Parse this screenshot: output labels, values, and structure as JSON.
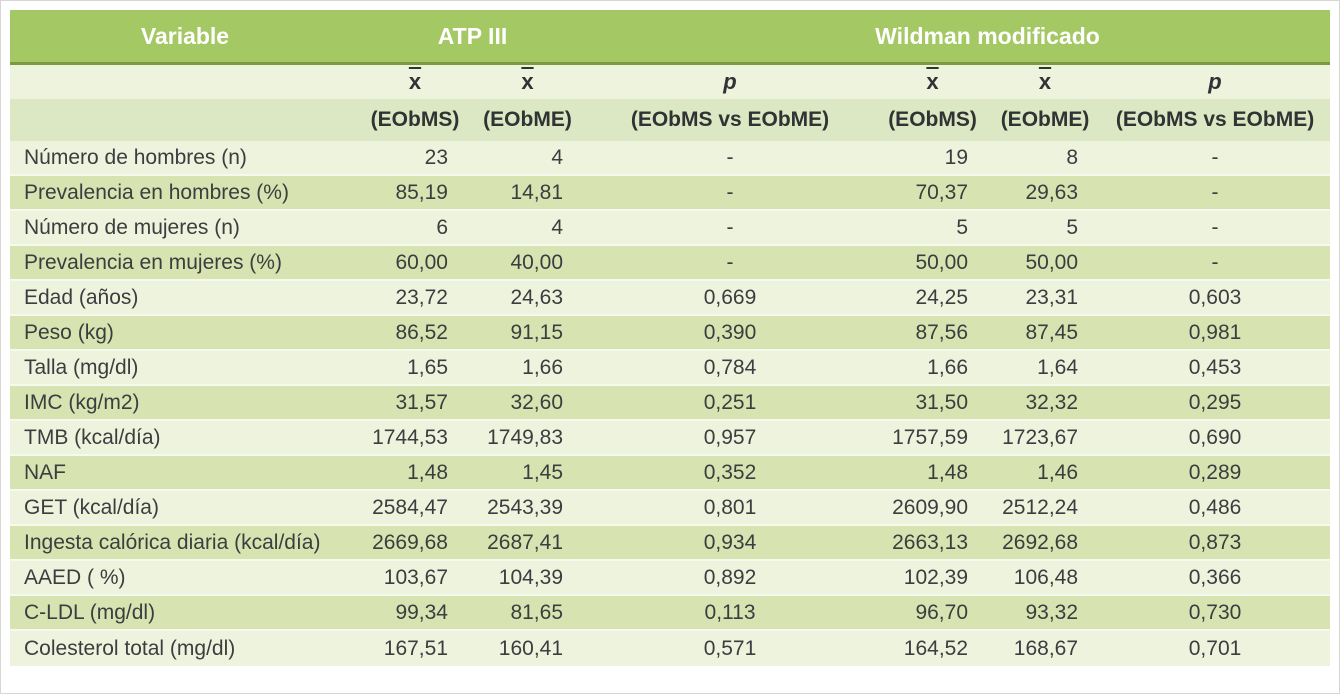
{
  "table": {
    "header": {
      "variable_label": "Variable",
      "group1_label": "ATP III",
      "group2_label": "Wildman modificado"
    },
    "subheader": {
      "mean_symbol": "x",
      "p_symbol": "p",
      "col_labels": [
        "(EObMS)",
        "(EObME)",
        "(EObMS vs EObME)",
        "(EObMS)",
        "(EObME)",
        "(EObMS vs EObME)"
      ]
    },
    "rows": [
      {
        "variable": "Número de hombres (n)",
        "values": [
          "23",
          "4",
          "-",
          "19",
          "8",
          "-"
        ]
      },
      {
        "variable": "Prevalencia en hombres (%)",
        "values": [
          "85,19",
          "14,81",
          "-",
          "70,37",
          "29,63",
          "-"
        ]
      },
      {
        "variable": "Número de mujeres (n)",
        "values": [
          "6",
          "4",
          "-",
          "5",
          "5",
          "-"
        ]
      },
      {
        "variable": "Prevalencia en mujeres (%)",
        "values": [
          "60,00",
          "40,00",
          "-",
          "50,00",
          "50,00",
          "-"
        ]
      },
      {
        "variable": "Edad (años)",
        "values": [
          "23,72",
          "24,63",
          "0,669",
          "24,25",
          "23,31",
          "0,603"
        ]
      },
      {
        "variable": "Peso (kg)",
        "values": [
          "86,52",
          "91,15",
          "0,390",
          "87,56",
          "87,45",
          "0,981"
        ]
      },
      {
        "variable": "Talla (mg/dl)",
        "values": [
          "1,65",
          "1,66",
          "0,784",
          "1,66",
          "1,64",
          "0,453"
        ]
      },
      {
        "variable": "IMC (kg/m2)",
        "values": [
          "31,57",
          "32,60",
          "0,251",
          "31,50",
          "32,32",
          "0,295"
        ]
      },
      {
        "variable": "TMB (kcal/día)",
        "values": [
          "1744,53",
          "1749,83",
          "0,957",
          "1757,59",
          "1723,67",
          "0,690"
        ]
      },
      {
        "variable": "NAF",
        "values": [
          "1,48",
          "1,45",
          "0,352",
          "1,48",
          "1,46",
          "0,289"
        ]
      },
      {
        "variable": "GET (kcal/día)",
        "values": [
          "2584,47",
          "2543,39",
          "0,801",
          "2609,90",
          "2512,24",
          "0,486"
        ]
      },
      {
        "variable": "Ingesta calórica diaria (kcal/día)",
        "values": [
          "2669,68",
          "2687,41",
          "0,934",
          "2663,13",
          "2692,68",
          "0,873"
        ]
      },
      {
        "variable": "AAED ( %)",
        "values": [
          "103,67",
          "104,39",
          "0,892",
          "102,39",
          "106,48",
          "0,366"
        ]
      },
      {
        "variable": "C-LDL (mg/dl)",
        "values": [
          "99,34",
          "81,65",
          "0,113",
          "96,70",
          "93,32",
          "0,730"
        ]
      },
      {
        "variable": "Colesterol total (mg/dl)",
        "values": [
          "167,51",
          "160,41",
          "0,571",
          "164,52",
          "168,67",
          "0,701"
        ]
      }
    ],
    "colors": {
      "header_green": "#a4c964",
      "header_separator": "#7d9a40",
      "row_light": "#eef3de",
      "row_medium": "#d7e4b2",
      "subheader_bg": "#dce8c3",
      "text_dark": "#3b3d3f",
      "header_text": "#ffffff"
    }
  }
}
